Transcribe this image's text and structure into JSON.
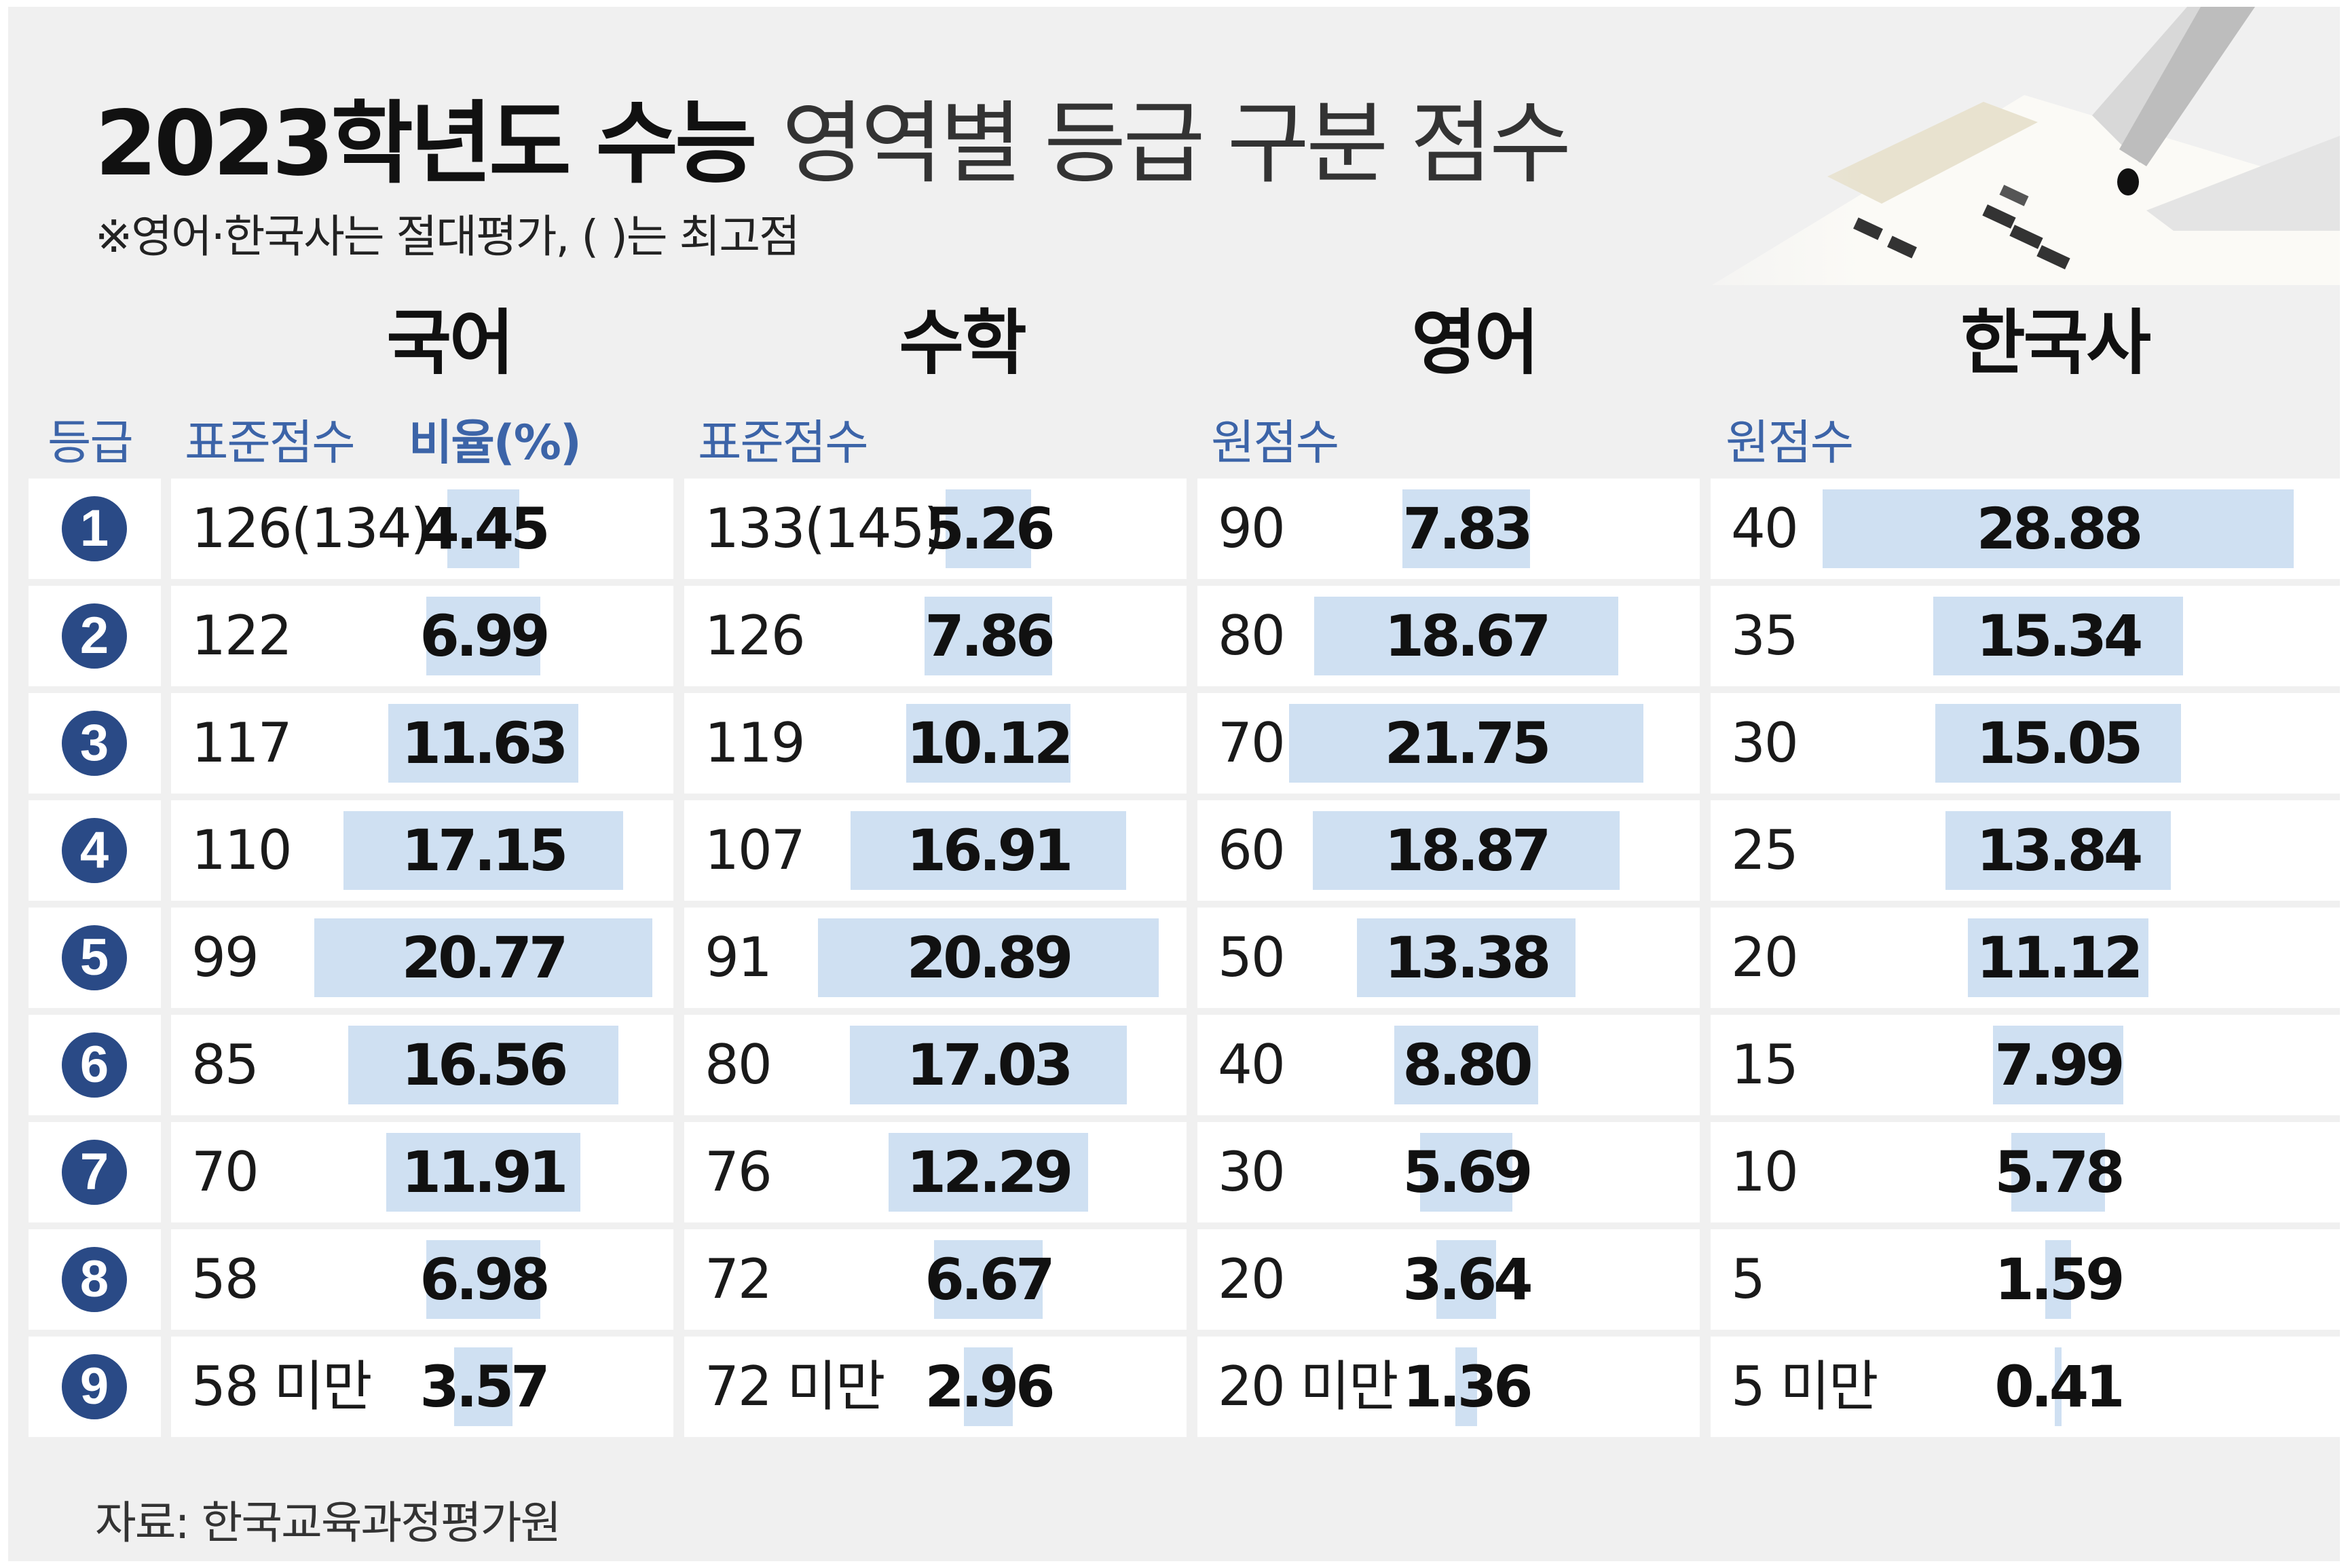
{
  "header": {
    "title_bold": "2023학년도 수능",
    "title_light": "영역별 등급 구분 점수",
    "subtitle": "※영어·한국사는 절대평가, ( )는 최고점"
  },
  "columns": {
    "grade": "등급",
    "std_score": "표준점수",
    "ratio": "비율(%)",
    "raw_score": "원점수"
  },
  "subjects": [
    "국어",
    "수학",
    "영어",
    "한국사"
  ],
  "chart_data": {
    "type": "table",
    "grades": [
      "1",
      "2",
      "3",
      "4",
      "5",
      "6",
      "7",
      "8",
      "9"
    ],
    "series": [
      {
        "name": "국어",
        "cutoffs": [
          "126(134)",
          "122",
          "117",
          "110",
          "99",
          "85",
          "70",
          "58",
          "58 미만"
        ],
        "ratios": [
          "4.45",
          "6.99",
          "11.63",
          "17.15",
          "20.77",
          "16.56",
          "11.91",
          "6.98",
          "3.57"
        ]
      },
      {
        "name": "수학",
        "cutoffs": [
          "133(145)",
          "126",
          "119",
          "107",
          "91",
          "80",
          "76",
          "72",
          "72 미만"
        ],
        "ratios": [
          "5.26",
          "7.86",
          "10.12",
          "16.91",
          "20.89",
          "17.03",
          "12.29",
          "6.67",
          "2.96"
        ]
      },
      {
        "name": "영어",
        "cutoffs": [
          "90",
          "80",
          "70",
          "60",
          "50",
          "40",
          "30",
          "20",
          "20 미만"
        ],
        "ratios": [
          "7.83",
          "18.67",
          "21.75",
          "18.87",
          "13.38",
          "8.80",
          "5.69",
          "3.64",
          "1.36"
        ]
      },
      {
        "name": "한국사",
        "cutoffs": [
          "40",
          "35",
          "30",
          "25",
          "20",
          "15",
          "10",
          "5",
          "5 미만"
        ],
        "ratios": [
          "28.88",
          "15.34",
          "15.05",
          "13.84",
          "11.12",
          "7.99",
          "5.78",
          "1.59",
          "0.41"
        ]
      }
    ],
    "bar_color": "#cfe0f2",
    "badge_color": "#2a4a86",
    "header_color": "#3c64a8"
  },
  "source": "자료: 한국교육과정평가원"
}
